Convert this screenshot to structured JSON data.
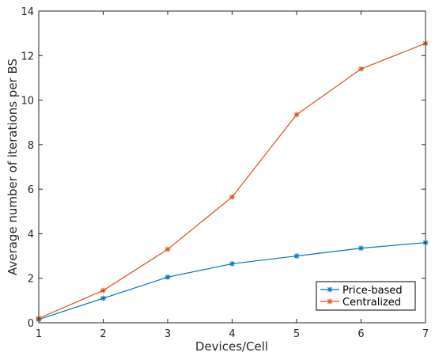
{
  "chart_data": {
    "type": "line",
    "title": "",
    "xlabel": "Devices/Cell",
    "ylabel": "Average number of iterations per BS",
    "xlim": [
      1,
      7
    ],
    "ylim": [
      0,
      14
    ],
    "xticks": [
      1,
      2,
      3,
      4,
      5,
      6,
      7
    ],
    "yticks": [
      0,
      2,
      4,
      6,
      8,
      10,
      12,
      14
    ],
    "grid": false,
    "legend_position": "bottom-right",
    "x": [
      1,
      2,
      3,
      4,
      5,
      6,
      7
    ],
    "series": [
      {
        "name": "Price-based",
        "color": "#0072BD",
        "marker": "asterisk",
        "values": [
          0.15,
          1.1,
          2.05,
          2.65,
          3.0,
          3.35,
          3.6
        ]
      },
      {
        "name": "Centralized",
        "color": "#D95319",
        "marker": "asterisk",
        "values": [
          0.2,
          1.45,
          3.3,
          5.65,
          9.35,
          11.4,
          12.55
        ]
      }
    ]
  }
}
